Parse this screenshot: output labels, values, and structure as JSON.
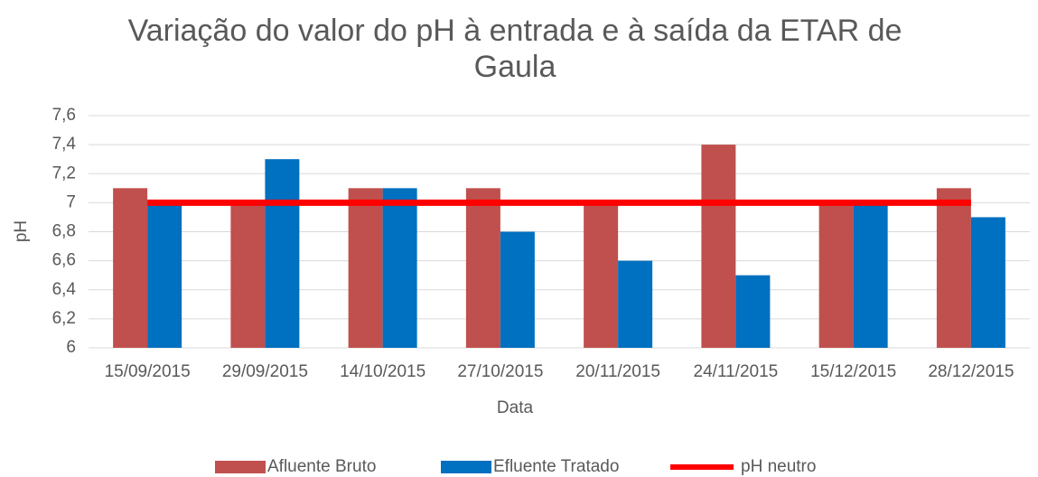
{
  "chart_data": {
    "type": "bar",
    "title": "Variação do valor do pH à entrada e à saída da ETAR de Gaula",
    "xlabel": "Data",
    "ylabel": "pH",
    "categories": [
      "15/09/2015",
      "29/09/2015",
      "14/10/2015",
      "27/10/2015",
      "20/11/2015",
      "24/11/2015",
      "15/12/2015",
      "28/12/2015"
    ],
    "series": [
      {
        "name": "Afluente Bruto",
        "color": "#c0504d",
        "type": "bar",
        "values": [
          7.1,
          7.0,
          7.1,
          7.1,
          7.0,
          7.4,
          7.0,
          7.1
        ]
      },
      {
        "name": "Efluente Tratado",
        "color": "#0070c0",
        "type": "bar",
        "values": [
          7.0,
          7.3,
          7.1,
          6.8,
          6.6,
          6.5,
          7.0,
          6.9
        ]
      },
      {
        "name": "pH neutro",
        "color": "#ff0000",
        "type": "line",
        "values": [
          7,
          7,
          7,
          7,
          7,
          7,
          7,
          7
        ]
      }
    ],
    "ylim": [
      6,
      7.6
    ],
    "yticks": [
      6,
      {
        "value": 6.2,
        "label": "6,2"
      },
      {
        "value": 6.4,
        "label": "6,4"
      },
      {
        "value": 6.6,
        "label": "6,6"
      },
      {
        "value": 6.8,
        "label": "6,8"
      },
      7,
      {
        "value": 7.2,
        "label": "7,2"
      },
      {
        "value": 7.4,
        "label": "7,4"
      },
      {
        "value": 7.6,
        "label": "7,6"
      }
    ],
    "grid": true,
    "legend": "bottom"
  }
}
